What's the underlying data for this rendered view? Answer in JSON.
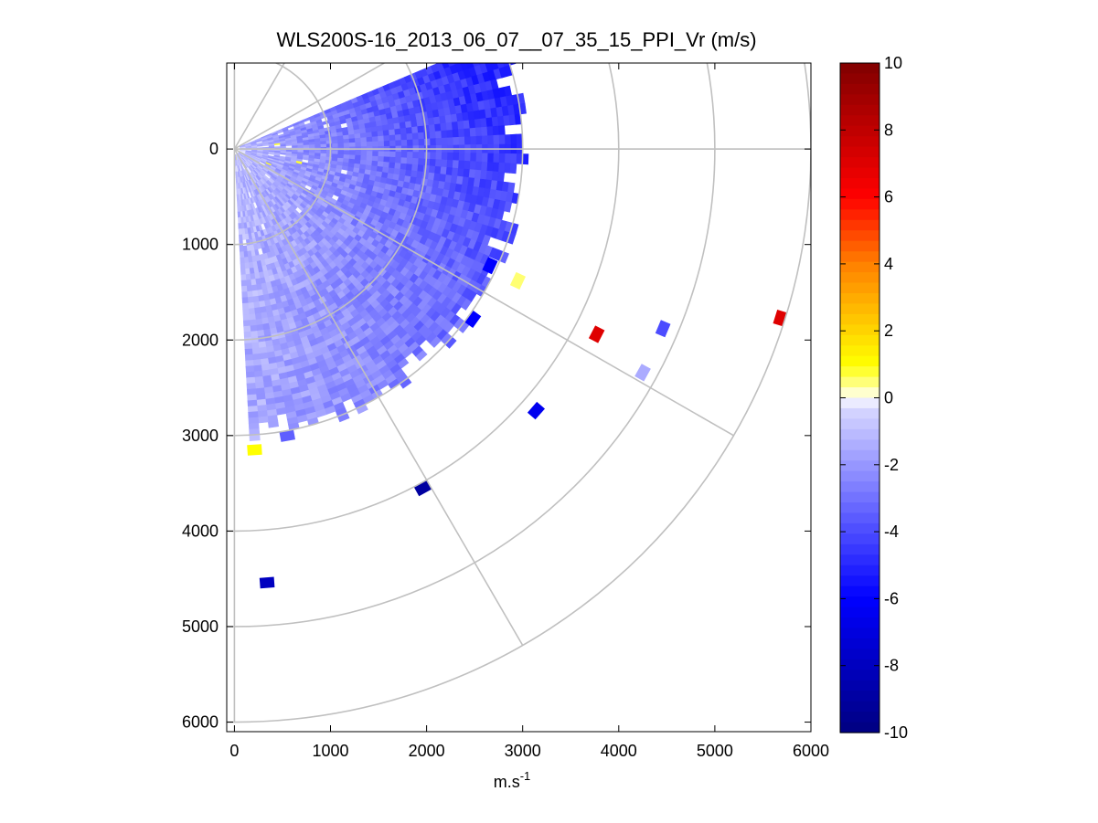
{
  "chart_data": {
    "type": "heatmap",
    "subtype": "polar PPI sector scan",
    "title": "WLS200S-16_2013_06_07__07_35_15_PPI_Vr (m/s)",
    "xlabel_base": "m.s",
    "xlabel_sup": "-1",
    "ylabel": "",
    "xlim": [
      -80,
      6000
    ],
    "ylim": [
      -900,
      6100
    ],
    "y_reversed": true,
    "x_ticks": [
      0,
      1000,
      2000,
      3000,
      4000,
      5000,
      6000
    ],
    "x_tick_labels": [
      "0",
      "1000",
      "2000",
      "3000",
      "4000",
      "5000",
      "6000"
    ],
    "y_ticks": [
      0,
      1000,
      2000,
      3000,
      4000,
      5000,
      6000
    ],
    "y_tick_labels": [
      "0",
      "1000",
      "2000",
      "3000",
      "4000",
      "5000",
      "6000"
    ],
    "polar_grid": {
      "origin": [
        0,
        0
      ],
      "ring_radii": [
        1000,
        2000,
        3000,
        4000,
        5000,
        6000
      ],
      "spoke_angles_deg": [
        0,
        30,
        60,
        90
      ],
      "color": "#c0c0c0"
    },
    "scan": {
      "angle_min_deg": -23,
      "angle_max_deg": 86,
      "range_max": 3000,
      "gate_length": 60,
      "beam_step_deg": 2,
      "near_range_velocity": -1.0,
      "far_range_velocity": -6.0,
      "left_edge_velocity": -1.5,
      "right_edge_velocity": -5.5
    },
    "isolated_points": [
      {
        "x": 2950,
        "y": 1380,
        "value": 0.5
      },
      {
        "x": 3770,
        "y": 1940,
        "value": 7.0
      },
      {
        "x": 4460,
        "y": 1880,
        "value": -4.0
      },
      {
        "x": 5680,
        "y": 1770,
        "value": 7.0
      },
      {
        "x": 4250,
        "y": 2340,
        "value": -1.5
      },
      {
        "x": 3140,
        "y": 2740,
        "value": -6.5
      },
      {
        "x": 1960,
        "y": 3550,
        "value": -9.0
      },
      {
        "x": 210,
        "y": 3150,
        "value": 1.0
      },
      {
        "x": 340,
        "y": 4540,
        "value": -8.0
      },
      {
        "x": 550,
        "y": 3000,
        "value": -3.5
      },
      {
        "x": 2660,
        "y": 1220,
        "value": -6.0
      },
      {
        "x": 2480,
        "y": 1780,
        "value": -6.0
      }
    ],
    "colorbar": {
      "range": [
        -10,
        10
      ],
      "ticks": [
        10,
        8,
        6,
        4,
        2,
        0,
        -2,
        -4,
        -6,
        -8,
        -10
      ],
      "tick_labels": [
        "10",
        "8",
        "6",
        "4",
        "2",
        "0",
        "-2",
        "-4",
        "-6",
        "-8",
        "-10"
      ],
      "colormap_stops": [
        {
          "v": -10,
          "c": "#000080"
        },
        {
          "v": -6,
          "c": "#0000ff"
        },
        {
          "v": -0.3,
          "c": "#d8d8ff"
        },
        {
          "v": 0,
          "c": "#ffffff"
        },
        {
          "v": 0.3,
          "c": "#ffffa0"
        },
        {
          "v": 1,
          "c": "#ffff00"
        },
        {
          "v": 4,
          "c": "#ff8000"
        },
        {
          "v": 6,
          "c": "#ff0000"
        },
        {
          "v": 10,
          "c": "#800000"
        }
      ]
    }
  }
}
